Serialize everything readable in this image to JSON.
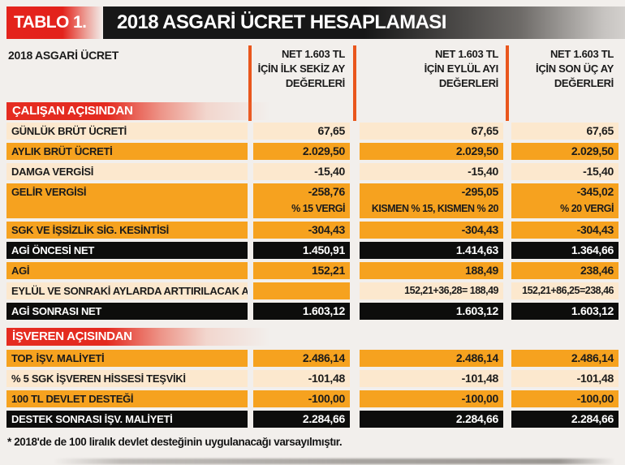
{
  "header": {
    "badge": "TABLO 1.",
    "title": "2018 ASGARİ ÜCRET HESAPLAMASI"
  },
  "chart_data": {
    "type": "table",
    "title": "2018 ASGARİ ÜCRET HESAPLAMASI",
    "table_label": "TABLO 1.",
    "row_header": "2018 ASGARİ ÜCRET",
    "columns": [
      "NET 1.603 TL\nİÇİN İLK SEKİZ AY\nDEĞERLERİ",
      "NET 1.603 TL\nİÇİN EYLÜL AYI\nDEĞERLERİ",
      "NET 1.603 TL\nİÇİN SON ÜÇ AY\nDEĞERLERİ"
    ],
    "section1": "ÇALIŞAN AÇISINDAN",
    "section2": "İŞVEREN AÇISINDAN",
    "rows": [
      {
        "label": "GÜNLÜK BRÜT ÜCRETİ",
        "values": [
          "67,65",
          "67,65",
          "67,65"
        ]
      },
      {
        "label": "AYLIK BRÜT ÜCRETİ",
        "values": [
          "2.029,50",
          "2.029,50",
          "2.029,50"
        ]
      },
      {
        "label": "DAMGA VERGİSİ",
        "values": [
          "-15,40",
          "-15,40",
          "-15,40"
        ]
      },
      {
        "label": "GELİR VERGİSİ",
        "values": [
          "-258,76",
          "-295,05",
          "-345,02"
        ],
        "notes": [
          "% 15 VERGİ",
          "KISMEN % 15, KISMEN % 20",
          "% 20 VERGİ"
        ]
      },
      {
        "label": "SGK VE İŞSİZLİK SİG. KESİNTİSİ",
        "values": [
          "-304,43",
          "-304,43",
          "-304,43"
        ]
      },
      {
        "label": "AGİ ÖNCESİ NET",
        "values": [
          "1.450,91",
          "1.414,63",
          "1.364,66"
        ]
      },
      {
        "label": "AGİ",
        "values": [
          "152,21",
          "188,49",
          "238,46"
        ]
      },
      {
        "label": "EYLÜL VE SONRAKİ AYLARDA ARTTIRILACAK AGİ",
        "values": [
          "",
          "152,21+36,28= 188,49",
          "152,21+86,25=238,46"
        ]
      },
      {
        "label": "AGİ SONRASI NET",
        "values": [
          "1.603,12",
          "1.603,12",
          "1.603,12"
        ]
      },
      {
        "label": "TOP. İŞV. MALİYETİ",
        "values": [
          "2.486,14",
          "2.486,14",
          "2.486,14"
        ]
      },
      {
        "label": "% 5 SGK İŞVEREN HİSSESİ TEŞVİKİ",
        "values": [
          "-101,48",
          "-101,48",
          "-101,48"
        ]
      },
      {
        "label": "100 TL DEVLET DESTEĞİ",
        "values": [
          "-100,00",
          "-100,00",
          "-100,00"
        ]
      },
      {
        "label": "DESTEK SONRASI İŞV. MALİYETİ",
        "values": [
          "2.284,66",
          "2.284,66",
          "2.284,66"
        ]
      }
    ],
    "footnote": "* 2018'de de 100 liralık devlet desteğinin uygulanacağı varsayılmıştır."
  },
  "colors": {
    "accent_red": "#e4231c",
    "row_orange": "#f6a21f",
    "row_cream": "#fce8ce",
    "row_black": "#0d0d0c",
    "divider_orange": "#e9561c"
  }
}
